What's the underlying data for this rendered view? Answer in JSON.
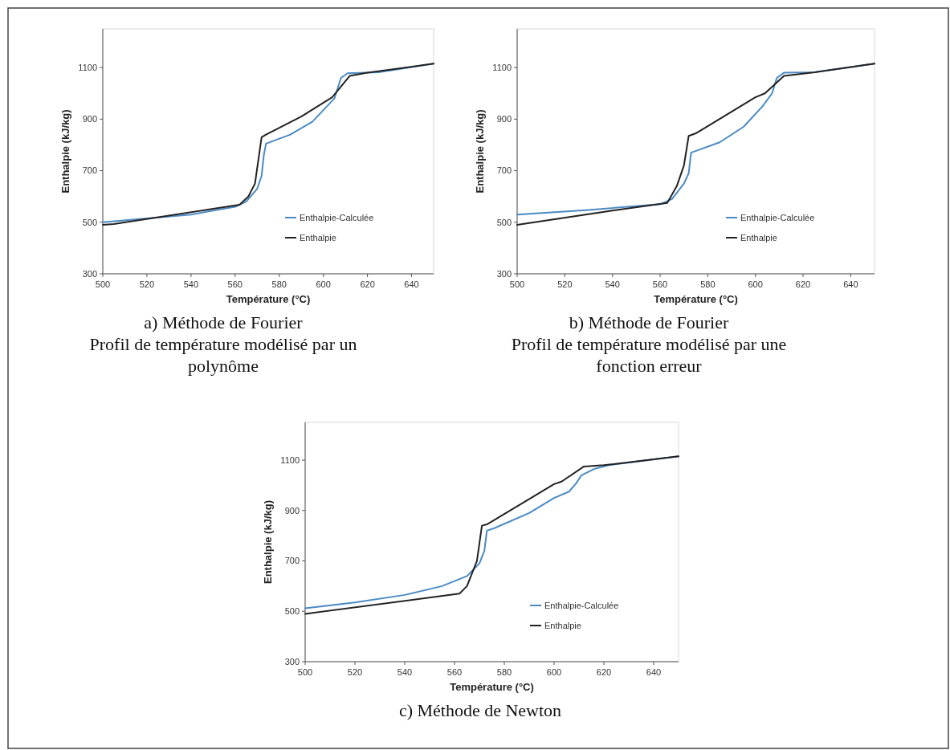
{
  "chart_data": [
    {
      "type": "line",
      "xlabel": "Température (°C)",
      "ylabel": "Enthalpie (kJ/kg)",
      "xlim": [
        500,
        650
      ],
      "ylim": [
        300,
        1250
      ],
      "xticks": [
        500,
        520,
        540,
        560,
        580,
        600,
        620,
        640
      ],
      "yticks": [
        300,
        500,
        700,
        900,
        1100
      ],
      "grid": false,
      "legend": "bottom right",
      "marker": "none",
      "line_style": "solid",
      "annotations": [
        "a) Méthode de Fourier",
        "Profil de température modélisé par un polynôme"
      ],
      "series": [
        {
          "name": "Enthalpie-Calculée",
          "color": "#4a8ac4",
          "x": [
            500,
            520,
            540,
            560,
            565,
            570,
            572,
            573,
            574,
            585,
            595,
            605,
            608,
            611,
            625,
            650
          ],
          "values": [
            500,
            515,
            530,
            560,
            580,
            630,
            680,
            760,
            805,
            840,
            890,
            980,
            1060,
            1078,
            1082,
            1115
          ]
        },
        {
          "name": "Enthalpie",
          "color": "#222222",
          "x": [
            500,
            505,
            562,
            566,
            569,
            572,
            574,
            590,
            604,
            612,
            620,
            650
          ],
          "values": [
            490,
            493,
            568,
            600,
            650,
            830,
            840,
            910,
            985,
            1068,
            1080,
            1115
          ]
        }
      ]
    },
    {
      "type": "line",
      "xlabel": "Température (°C)",
      "ylabel": "Enthalpie (kJ/kg)",
      "xlim": [
        500,
        650
      ],
      "ylim": [
        300,
        1250
      ],
      "xticks": [
        500,
        520,
        540,
        560,
        580,
        600,
        620,
        640
      ],
      "yticks": [
        300,
        500,
        700,
        900,
        1100
      ],
      "grid": false,
      "legend": "bottom right",
      "marker": "none",
      "line_style": "solid",
      "annotations": [
        "b) Méthode de Fourier",
        "Profil de température modélisé par une fonction erreur"
      ],
      "series": [
        {
          "name": "Enthalpie-Calculée",
          "color": "#4a8ac4",
          "x": [
            500,
            530,
            560,
            565,
            570,
            572,
            573,
            576,
            585,
            595,
            603,
            607,
            609,
            612,
            625,
            650
          ],
          "values": [
            530,
            548,
            570,
            590,
            650,
            690,
            770,
            780,
            810,
            870,
            950,
            1000,
            1060,
            1080,
            1082,
            1115
          ]
        },
        {
          "name": "Enthalpie",
          "color": "#222222",
          "x": [
            500,
            540,
            563,
            567,
            570,
            572,
            575,
            600,
            604,
            612,
            625,
            650
          ],
          "values": [
            490,
            545,
            575,
            640,
            720,
            835,
            845,
            985,
            1000,
            1068,
            1082,
            1115
          ]
        }
      ]
    },
    {
      "type": "line",
      "xlabel": "Température (°C)",
      "ylabel": "Enthalpie (kJ/kg)",
      "xlim": [
        500,
        650
      ],
      "ylim": [
        300,
        1250
      ],
      "xticks": [
        500,
        520,
        540,
        560,
        580,
        600,
        620,
        640
      ],
      "yticks": [
        300,
        500,
        700,
        900,
        1100
      ],
      "grid": false,
      "legend": "bottom right",
      "marker": "none",
      "line_style": "solid",
      "annotations": [
        "c) Méthode de Newton"
      ],
      "series": [
        {
          "name": "Enthalpie-Calculée",
          "color": "#4a8ac4",
          "x": [
            500,
            520,
            540,
            555,
            565,
            570,
            572,
            573,
            576,
            590,
            600,
            606,
            609,
            611,
            616,
            622,
            650
          ],
          "values": [
            512,
            535,
            565,
            600,
            640,
            690,
            740,
            820,
            830,
            890,
            950,
            975,
            1010,
            1040,
            1065,
            1080,
            1115
          ]
        },
        {
          "name": "Enthalpie",
          "color": "#222222",
          "x": [
            500,
            562,
            565,
            569,
            571,
            573,
            600,
            603,
            612,
            620,
            650
          ],
          "values": [
            490,
            570,
            600,
            700,
            840,
            845,
            1005,
            1015,
            1075,
            1080,
            1115
          ]
        }
      ]
    }
  ]
}
